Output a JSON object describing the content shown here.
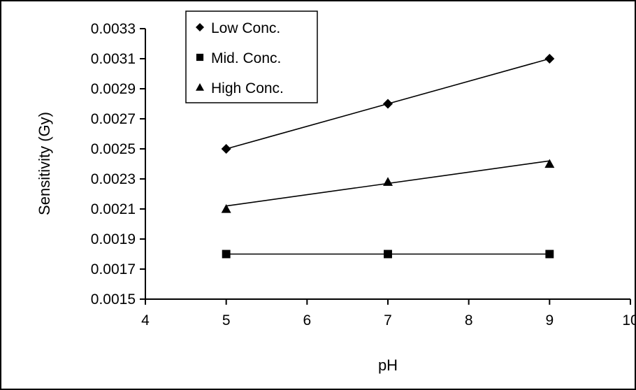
{
  "chart_data": {
    "type": "scatter",
    "xlabel": "pH",
    "ylabel": "Sensitivity (Gy)",
    "xlim": [
      4,
      10
    ],
    "ylim": [
      0.0015,
      0.0033
    ],
    "x_ticks": [
      "4",
      "5",
      "6",
      "7",
      "8",
      "9",
      "10"
    ],
    "y_ticks": [
      "0.0015",
      "0.0017",
      "0.0019",
      "0.0021",
      "0.0023",
      "0.0025",
      "0.0027",
      "0.0029",
      "0.0031",
      "0.0033"
    ],
    "grid": false,
    "legend_position": "top-left",
    "series": [
      {
        "name": "Low Conc.",
        "marker": "diamond",
        "x": [
          5,
          7,
          9
        ],
        "y": [
          0.0025,
          0.0028,
          0.0031
        ],
        "trendline": {
          "x": [
            5,
            9
          ],
          "y": [
            0.0025,
            0.0031
          ]
        }
      },
      {
        "name": "Mid. Conc.",
        "marker": "square",
        "x": [
          5,
          7,
          9
        ],
        "y": [
          0.0018,
          0.0018,
          0.0018
        ],
        "trendline": {
          "x": [
            5,
            9
          ],
          "y": [
            0.0018,
            0.0018
          ]
        }
      },
      {
        "name": "High Conc.",
        "marker": "triangle",
        "x": [
          5,
          7,
          9
        ],
        "y": [
          0.0021,
          0.00228,
          0.0024
        ],
        "trendline": {
          "x": [
            5,
            9
          ],
          "y": [
            0.00212,
            0.00242
          ]
        }
      }
    ],
    "colors": {
      "mark": "#000000",
      "background": "#ffffff"
    }
  }
}
